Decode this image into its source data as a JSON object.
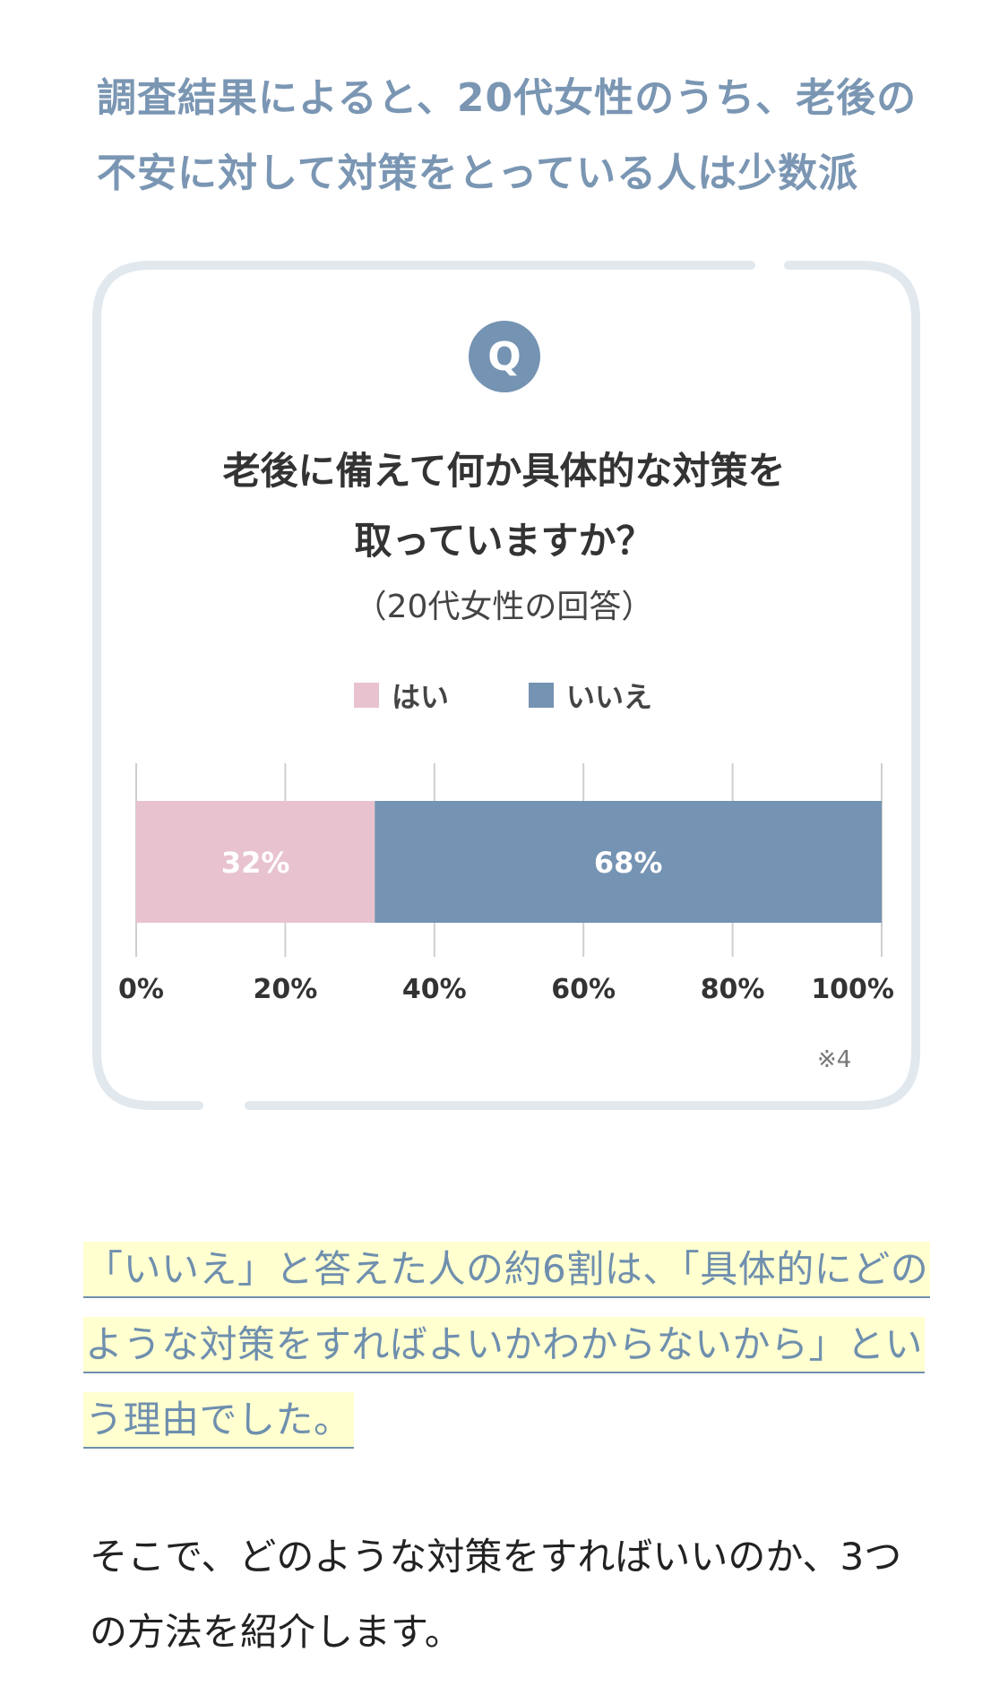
{
  "headline": "調査結果によると、20代女性のうち、老後の不安に対して対策をとっている人は少数派",
  "card": {
    "badge": "Q",
    "question_line1": "老後に備えて何か具体的な対策を",
    "question_line2": "取っていますか？",
    "subtitle": "（20代女性の回答）",
    "note": "※4"
  },
  "chart_data": {
    "type": "bar",
    "orientation": "horizontal-stacked",
    "series": [
      {
        "name": "はい",
        "value": 32,
        "label": "32%",
        "color": "#e8c3cf"
      },
      {
        "name": "いいえ",
        "value": 68,
        "label": "68%",
        "color": "#7593b2"
      }
    ],
    "xlim": [
      0,
      100
    ],
    "xticks": [
      0,
      20,
      40,
      60,
      80,
      100
    ],
    "xtick_labels": [
      "0%",
      "20%",
      "40%",
      "60%",
      "80%",
      "100%"
    ],
    "grid": true,
    "legend_position": "top-center",
    "colors": {
      "grid": "#cfcfcf",
      "tick_text": "#333333"
    }
  },
  "highlight_text": "「いいえ」と答えた人の約6割は、「具体的にどのような対策をすればよいかわからないから」という理由でした。",
  "body_text": "そこで、どのような対策をすればいいのか、3つの方法を紹介します。"
}
